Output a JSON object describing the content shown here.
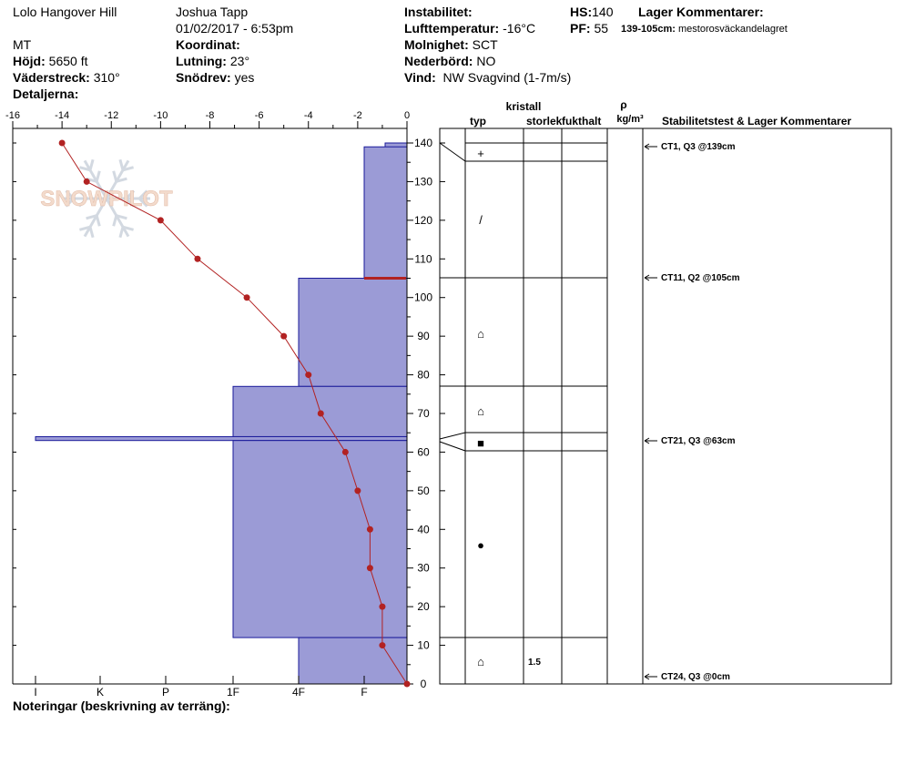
{
  "header": {
    "location": "Lolo Hangover Hill",
    "region": "MT",
    "observer": "Joshua Tapp",
    "datetime": "01/02/2017 - 6:53pm",
    "elevation_label": "Höjd:",
    "elevation_value": "5650 ft",
    "aspect_label": "Väderstreck:",
    "aspect_value": "310°",
    "details_label": "Detaljerna:",
    "coordinate_label": "Koordinat:",
    "coordinate_value": "",
    "slope_label": "Lutning:",
    "slope_value": "23°",
    "drift_label": "Snödrev:",
    "drift_value": "yes",
    "instability_label": "Instabilitet:",
    "instability_value": "",
    "airtemp_label": "Lufttemperatur:",
    "airtemp_value": "-16°C",
    "sky_label": "Molnighet:",
    "sky_value": "SCT",
    "precip_label": "Nederbörd:",
    "precip_value": "NO",
    "wind_label": "Vind:",
    "wind_value": "NW Svagvind (1-7m/s)",
    "hs_label": "HS:",
    "hs_value": "140",
    "pf_label": "PF:",
    "pf_value": "55",
    "layer_comments_label": "Lager Kommentarer:",
    "layer_comment_range": "139-105cm:",
    "layer_comment_text": "mestorosväckandelagret"
  },
  "footer": {
    "notes_label": "Noteringar (beskrivning av terräng):"
  },
  "watermark": {
    "text": "SNOWPILOT"
  },
  "columns": {
    "kristall": "kristall",
    "typ": "typ",
    "storlek": "storlek",
    "fukthalt": "fukthalt",
    "rho": "ρ",
    "density_unit": "kg/m³",
    "stability": "Stabilitetstest & Lager Kommentarer"
  },
  "chart_data": {
    "type": "line",
    "x_axis_top": {
      "label": "",
      "ticks": [
        -16,
        -14,
        -12,
        -10,
        -8,
        -6,
        -4,
        -2,
        0
      ],
      "range": [
        -16,
        0
      ]
    },
    "x_axis_bottom": {
      "label": "",
      "ticks": [
        "I",
        "K",
        "P",
        "1F",
        "4F",
        "F"
      ]
    },
    "y_axis": {
      "label": "",
      "ticks": [
        0,
        10,
        20,
        30,
        40,
        50,
        60,
        70,
        80,
        90,
        100,
        110,
        120,
        130,
        140
      ],
      "range": [
        0,
        140
      ]
    },
    "temperature_series": {
      "color": "#b22222",
      "points": [
        {
          "height": 140,
          "temp": -14.0
        },
        {
          "height": 130,
          "temp": -13.0
        },
        {
          "height": 120,
          "temp": -10.0
        },
        {
          "height": 110,
          "temp": -8.5
        },
        {
          "height": 100,
          "temp": -6.5
        },
        {
          "height": 90,
          "temp": -5.0
        },
        {
          "height": 80,
          "temp": -4.0
        },
        {
          "height": 70,
          "temp": -3.5
        },
        {
          "height": 60,
          "temp": -2.5
        },
        {
          "height": 50,
          "temp": -2.0
        },
        {
          "height": 40,
          "temp": -1.5
        },
        {
          "height": 30,
          "temp": -1.5
        },
        {
          "height": 20,
          "temp": -1.0
        },
        {
          "height": 10,
          "temp": -1.0
        },
        {
          "height": 0,
          "temp": 0.0
        }
      ]
    },
    "hardness_layers": {
      "fill": "#9b9bd6",
      "stroke": "#1a1a9a",
      "layers": [
        {
          "bottom": 136,
          "top": 140,
          "hardness": "F-"
        },
        {
          "bottom": 105,
          "top": 139,
          "hardness": "F"
        },
        {
          "bottom": 77,
          "top": 105,
          "hardness": "4F"
        },
        {
          "bottom": 64,
          "top": 77,
          "hardness": "1F"
        },
        {
          "bottom": 63,
          "top": 64,
          "hardness": "I"
        },
        {
          "bottom": 12,
          "top": 63,
          "hardness": "1F"
        },
        {
          "bottom": 0,
          "top": 12,
          "hardness": "4F"
        }
      ]
    },
    "weak_layer_marker": {
      "height": 105,
      "color": "#b22222"
    },
    "layer_boundaries_cm": [
      139,
      135,
      105,
      77,
      65,
      60,
      12,
      0
    ],
    "crystal_symbols": [
      {
        "height": 137,
        "symbol": "+"
      },
      {
        "height": 122,
        "symbol": "/"
      },
      {
        "height": 91,
        "symbol": "⌂"
      },
      {
        "height": 71,
        "symbol": "⌂"
      },
      {
        "height": 63,
        "symbol": "■"
      },
      {
        "height": 36,
        "symbol": "●"
      },
      {
        "height": 6,
        "symbol": "⌂"
      }
    ],
    "grain_sizes": [
      {
        "height": 6,
        "value": "1.5"
      }
    ],
    "stability_tests": [
      {
        "height": 139,
        "label": "CT1, Q3 @139cm"
      },
      {
        "height": 105,
        "label": "CT11, Q2 @105cm"
      },
      {
        "height": 63,
        "label": "CT21, Q3 @63cm"
      },
      {
        "height": 0,
        "label": "CT24, Q3 @0cm"
      }
    ]
  }
}
